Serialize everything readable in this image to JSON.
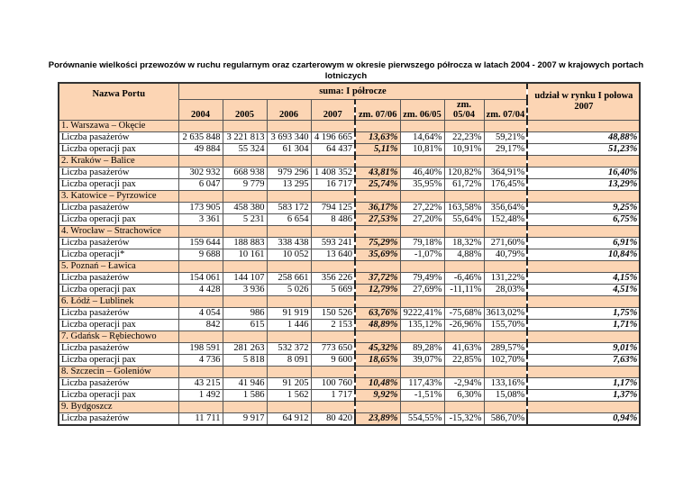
{
  "title": "Porównanie wielkości przewozów w ruchu regularnym oraz czarterowym w okresie pierwszego półrocza w latach 2004 - 2007 w krajowych portach lotniczych",
  "header": {
    "port": "Nazwa Portu",
    "group": "suma: I półrocze",
    "share": "udział w rynku I połowa 2007",
    "cols": [
      "2004",
      "2005",
      "2006",
      "2007",
      "zm. 07/06",
      "zm. 06/05",
      "zm. 05/04",
      "zm. 07/04"
    ]
  },
  "sections": [
    {
      "name": "1. Warszawa – Okęcie",
      "rows": [
        {
          "label": "Liczba pasażerów",
          "v": [
            "2 635 848",
            "3 221 813",
            "3 693 340",
            "4 196 665",
            "13,63%",
            "14,64%",
            "22,23%",
            "59,21%",
            "48,88%"
          ]
        },
        {
          "label": "Liczba operacji pax",
          "v": [
            "49 884",
            "55 324",
            "61 304",
            "64 437",
            "5,11%",
            "10,81%",
            "10,91%",
            "29,17%",
            "51,23%"
          ]
        }
      ]
    },
    {
      "name": "2. Kraków – Balice",
      "rows": [
        {
          "label": "Liczba pasażerów",
          "v": [
            "302 932",
            "668 938",
            "979 296",
            "1 408 352",
            "43,81%",
            "46,40%",
            "120,82%",
            "364,91%",
            "16,40%"
          ]
        },
        {
          "label": "Liczba operacji pax",
          "v": [
            "6 047",
            "9 779",
            "13 295",
            "16 717",
            "25,74%",
            "35,95%",
            "61,72%",
            "176,45%",
            "13,29%"
          ]
        }
      ]
    },
    {
      "name": "3. Katowice – Pyrzowice",
      "rows": [
        {
          "label": "Liczba pasażerów",
          "v": [
            "173 905",
            "458 380",
            "583 172",
            "794 125",
            "36,17%",
            "27,22%",
            "163,58%",
            "356,64%",
            "9,25%"
          ]
        },
        {
          "label": "Liczba operacji pax",
          "v": [
            "3 361",
            "5 231",
            "6 654",
            "8 486",
            "27,53%",
            "27,20%",
            "55,64%",
            "152,48%",
            "6,75%"
          ]
        }
      ]
    },
    {
      "name": "4. Wrocław – Strachowice",
      "rows": [
        {
          "label": "Liczba pasażerów",
          "v": [
            "159 644",
            "188 883",
            "338 438",
            "593 241",
            "75,29%",
            "79,18%",
            "18,32%",
            "271,60%",
            "6,91%"
          ]
        },
        {
          "label": "Liczba operacji*",
          "v": [
            "9 688",
            "10 161",
            "10 052",
            "13 640",
            "35,69%",
            "-1,07%",
            "4,88%",
            "40,79%",
            "10,84%"
          ]
        }
      ]
    },
    {
      "name": "5. Poznań – Ławica",
      "rows": [
        {
          "label": "Liczba pasażerów",
          "v": [
            "154 061",
            "144 107",
            "258 661",
            "356 226",
            "37,72%",
            "79,49%",
            "-6,46%",
            "131,22%",
            "4,15%"
          ]
        },
        {
          "label": "Liczba operacji pax",
          "v": [
            "4 428",
            "3 936",
            "5 026",
            "5 669",
            "12,79%",
            "27,69%",
            "-11,11%",
            "28,03%",
            "4,51%"
          ]
        }
      ]
    },
    {
      "name": "6. Łódź – Lublinek",
      "rows": [
        {
          "label": "Liczba pasażerów",
          "v": [
            "4 054",
            "986",
            "91 919",
            "150 526",
            "63,76%",
            "9222,41%",
            "-75,68%",
            "3613,02%",
            "1,75%"
          ]
        },
        {
          "label": "Liczba operacji pax",
          "v": [
            "842",
            "615",
            "1 446",
            "2 153",
            "48,89%",
            "135,12%",
            "-26,96%",
            "155,70%",
            "1,71%"
          ]
        }
      ]
    },
    {
      "name": "7. Gdańsk – Rębiechowo",
      "rows": [
        {
          "label": "Liczba pasażerów",
          "v": [
            "198 591",
            "281 263",
            "532 372",
            "773 650",
            "45,32%",
            "89,28%",
            "41,63%",
            "289,57%",
            "9,01%"
          ]
        },
        {
          "label": "Liczba operacji pax",
          "v": [
            "4 736",
            "5 818",
            "8 091",
            "9 600",
            "18,65%",
            "39,07%",
            "22,85%",
            "102,70%",
            "7,63%"
          ]
        }
      ]
    },
    {
      "name": "8. Szczecin – Goleniów",
      "rows": [
        {
          "label": "Liczba pasażerów",
          "v": [
            "43 215",
            "41 946",
            "91 205",
            "100 760",
            "10,48%",
            "117,43%",
            "-2,94%",
            "133,16%",
            "1,17%"
          ]
        },
        {
          "label": "Liczba operacji pax",
          "v": [
            "1 492",
            "1 586",
            "1 562",
            "1 717",
            "9,92%",
            "-1,51%",
            "6,30%",
            "15,08%",
            "1,37%"
          ]
        }
      ]
    },
    {
      "name": "9. Bydgoszcz",
      "rows": [
        {
          "label": "Liczba pasażerów",
          "v": [
            "11 711",
            "9 917",
            "64 912",
            "80 420",
            "23,89%",
            "554,55%",
            "-15,32%",
            "586,70%",
            "0,94%"
          ]
        }
      ]
    }
  ]
}
